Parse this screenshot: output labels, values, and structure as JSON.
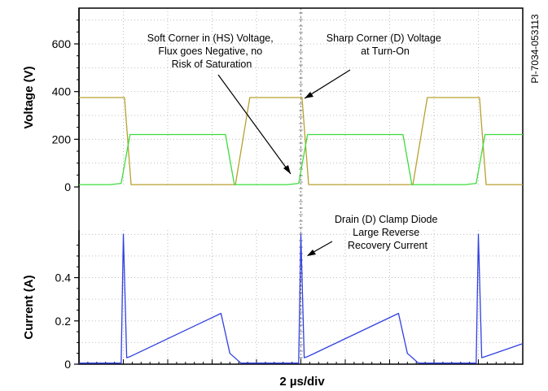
{
  "chart_data": [
    {
      "type": "line",
      "ylabel": "Voltage (V)",
      "yticks": [
        0,
        200,
        400,
        600
      ],
      "ylim": [
        0,
        750
      ],
      "grid": "dotted",
      "series": [
        {
          "color": "#b8a030",
          "x": [
            0,
            2.05,
            2.35,
            7.05,
            7.7,
            10.05,
            10.35,
            15.05,
            15.7,
            18.05,
            18.35,
            20
          ],
          "values": [
            375,
            375,
            10,
            10,
            375,
            375,
            10,
            10,
            375,
            375,
            10,
            10
          ]
        },
        {
          "color": "#3cdc3c",
          "x": [
            0,
            1.4,
            1.9,
            2.3,
            6.6,
            7.0,
            9.4,
            9.9,
            10.3,
            14.6,
            15.0,
            17.4,
            17.9,
            18.3,
            20
          ],
          "values": [
            10,
            10,
            15,
            220,
            220,
            10,
            10,
            15,
            220,
            220,
            10,
            10,
            15,
            220,
            220
          ]
        }
      ],
      "annotations": [
        "Soft Corner in (HS) Voltage, Flux goes Negative, no Risk of Saturation",
        "Sharp Corner (D) Voltage at Turn-On"
      ]
    },
    {
      "type": "line",
      "ylabel": "Current (A)",
      "xlabel": "2 µs/div",
      "yticks": [
        0,
        0.2,
        0.4
      ],
      "ylim": [
        0,
        0.62
      ],
      "grid": "dotted",
      "series": [
        {
          "color": "#3040e0",
          "x": [
            0,
            1.9,
            2.0,
            2.15,
            2.3,
            6.4,
            6.8,
            7.3,
            9.9,
            10.0,
            10.15,
            10.3,
            14.4,
            14.8,
            15.3,
            17.9,
            18.0,
            18.15,
            18.3,
            20
          ],
          "values": [
            0.005,
            0.005,
            0.6,
            0.03,
            0.035,
            0.235,
            0.05,
            0.005,
            0.005,
            0.6,
            0.03,
            0.035,
            0.235,
            0.05,
            0.005,
            0.005,
            0.6,
            0.03,
            0.035,
            0.095
          ]
        }
      ],
      "annotations": [
        "Drain (D) Clamp Diode Large Reverse Recovery Current"
      ]
    }
  ],
  "figure_id": "PI-7034-053113"
}
